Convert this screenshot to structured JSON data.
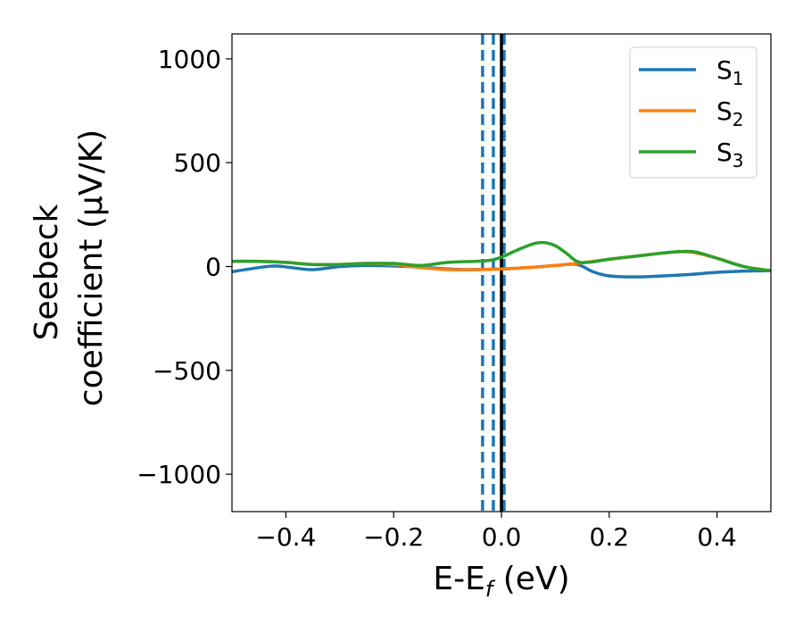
{
  "chart_data": {
    "type": "line",
    "title": "",
    "xlabel_main": "E-E",
    "xlabel_sub": "f",
    "xlabel_unit": " (eV)",
    "ylabel_line1": "Seebeck",
    "ylabel_line2": "coefficient  (μV/K)",
    "xlim": [
      -0.5,
      0.5
    ],
    "ylim": [
      -1180,
      1120
    ],
    "x_ticks": [
      -0.4,
      -0.2,
      0.0,
      0.2,
      0.4
    ],
    "x_tick_labels": [
      "−0.4",
      "−0.2",
      "0.0",
      "0.2",
      "0.4"
    ],
    "y_ticks": [
      1000,
      500,
      0,
      -500,
      -1000
    ],
    "y_tick_labels": [
      "1000",
      "500",
      "0",
      "−500",
      "−1000"
    ],
    "grid": false,
    "legend": {
      "position": "top-right",
      "entries": [
        {
          "base": "S",
          "sub": "1",
          "color": "#1f77b4"
        },
        {
          "base": "S",
          "sub": "2",
          "color": "#ff7f0e"
        },
        {
          "base": "S",
          "sub": "3",
          "color": "#2ca02c"
        }
      ]
    },
    "vertical_lines": [
      {
        "x": -0.035,
        "style": "dashed",
        "color": "#1f77b4"
      },
      {
        "x": -0.015,
        "style": "dashed",
        "color": "#1f77b4"
      },
      {
        "x": 0.005,
        "style": "dashed",
        "color": "#1f77b4"
      },
      {
        "x": 0.0,
        "style": "solid",
        "color": "#000000"
      }
    ],
    "series": [
      {
        "name": "S1",
        "color": "#1f77b4",
        "x": [
          -0.5,
          -0.45,
          -0.42,
          -0.39,
          -0.35,
          -0.3,
          -0.25,
          -0.2,
          -0.15,
          -0.1,
          -0.05,
          0.0,
          0.05,
          0.1,
          0.14,
          0.17,
          0.2,
          0.25,
          0.3,
          0.35,
          0.4,
          0.45,
          0.5
        ],
        "y": [
          -25,
          -5,
          3,
          -5,
          -15,
          0,
          5,
          3,
          -3,
          -12,
          -15,
          -12,
          -5,
          5,
          10,
          -25,
          -45,
          -50,
          -45,
          -38,
          -28,
          -22,
          -20
        ]
      },
      {
        "name": "S2",
        "color": "#ff7f0e",
        "x": [
          -0.5,
          -0.45,
          -0.4,
          -0.35,
          -0.3,
          -0.25,
          -0.2,
          -0.15,
          -0.1,
          -0.05,
          0.0,
          0.05,
          0.1,
          0.15,
          0.2,
          0.25,
          0.3,
          0.35,
          0.4,
          0.45,
          0.5
        ],
        "y": [
          25,
          25,
          20,
          10,
          10,
          15,
          10,
          -5,
          -15,
          -15,
          -12,
          -5,
          5,
          18,
          35,
          50,
          65,
          70,
          40,
          0,
          -20
        ]
      },
      {
        "name": "S3",
        "color": "#2ca02c",
        "x": [
          -0.5,
          -0.45,
          -0.4,
          -0.35,
          -0.3,
          -0.25,
          -0.2,
          -0.15,
          -0.1,
          -0.05,
          -0.02,
          0.0,
          0.03,
          0.06,
          0.08,
          0.1,
          0.12,
          0.14,
          0.16,
          0.2,
          0.25,
          0.3,
          0.33,
          0.36,
          0.4,
          0.45,
          0.5
        ],
        "y": [
          25,
          25,
          20,
          10,
          10,
          15,
          15,
          5,
          20,
          25,
          30,
          45,
          80,
          110,
          115,
          100,
          65,
          25,
          20,
          35,
          50,
          65,
          72,
          70,
          40,
          0,
          -20
        ]
      }
    ]
  }
}
